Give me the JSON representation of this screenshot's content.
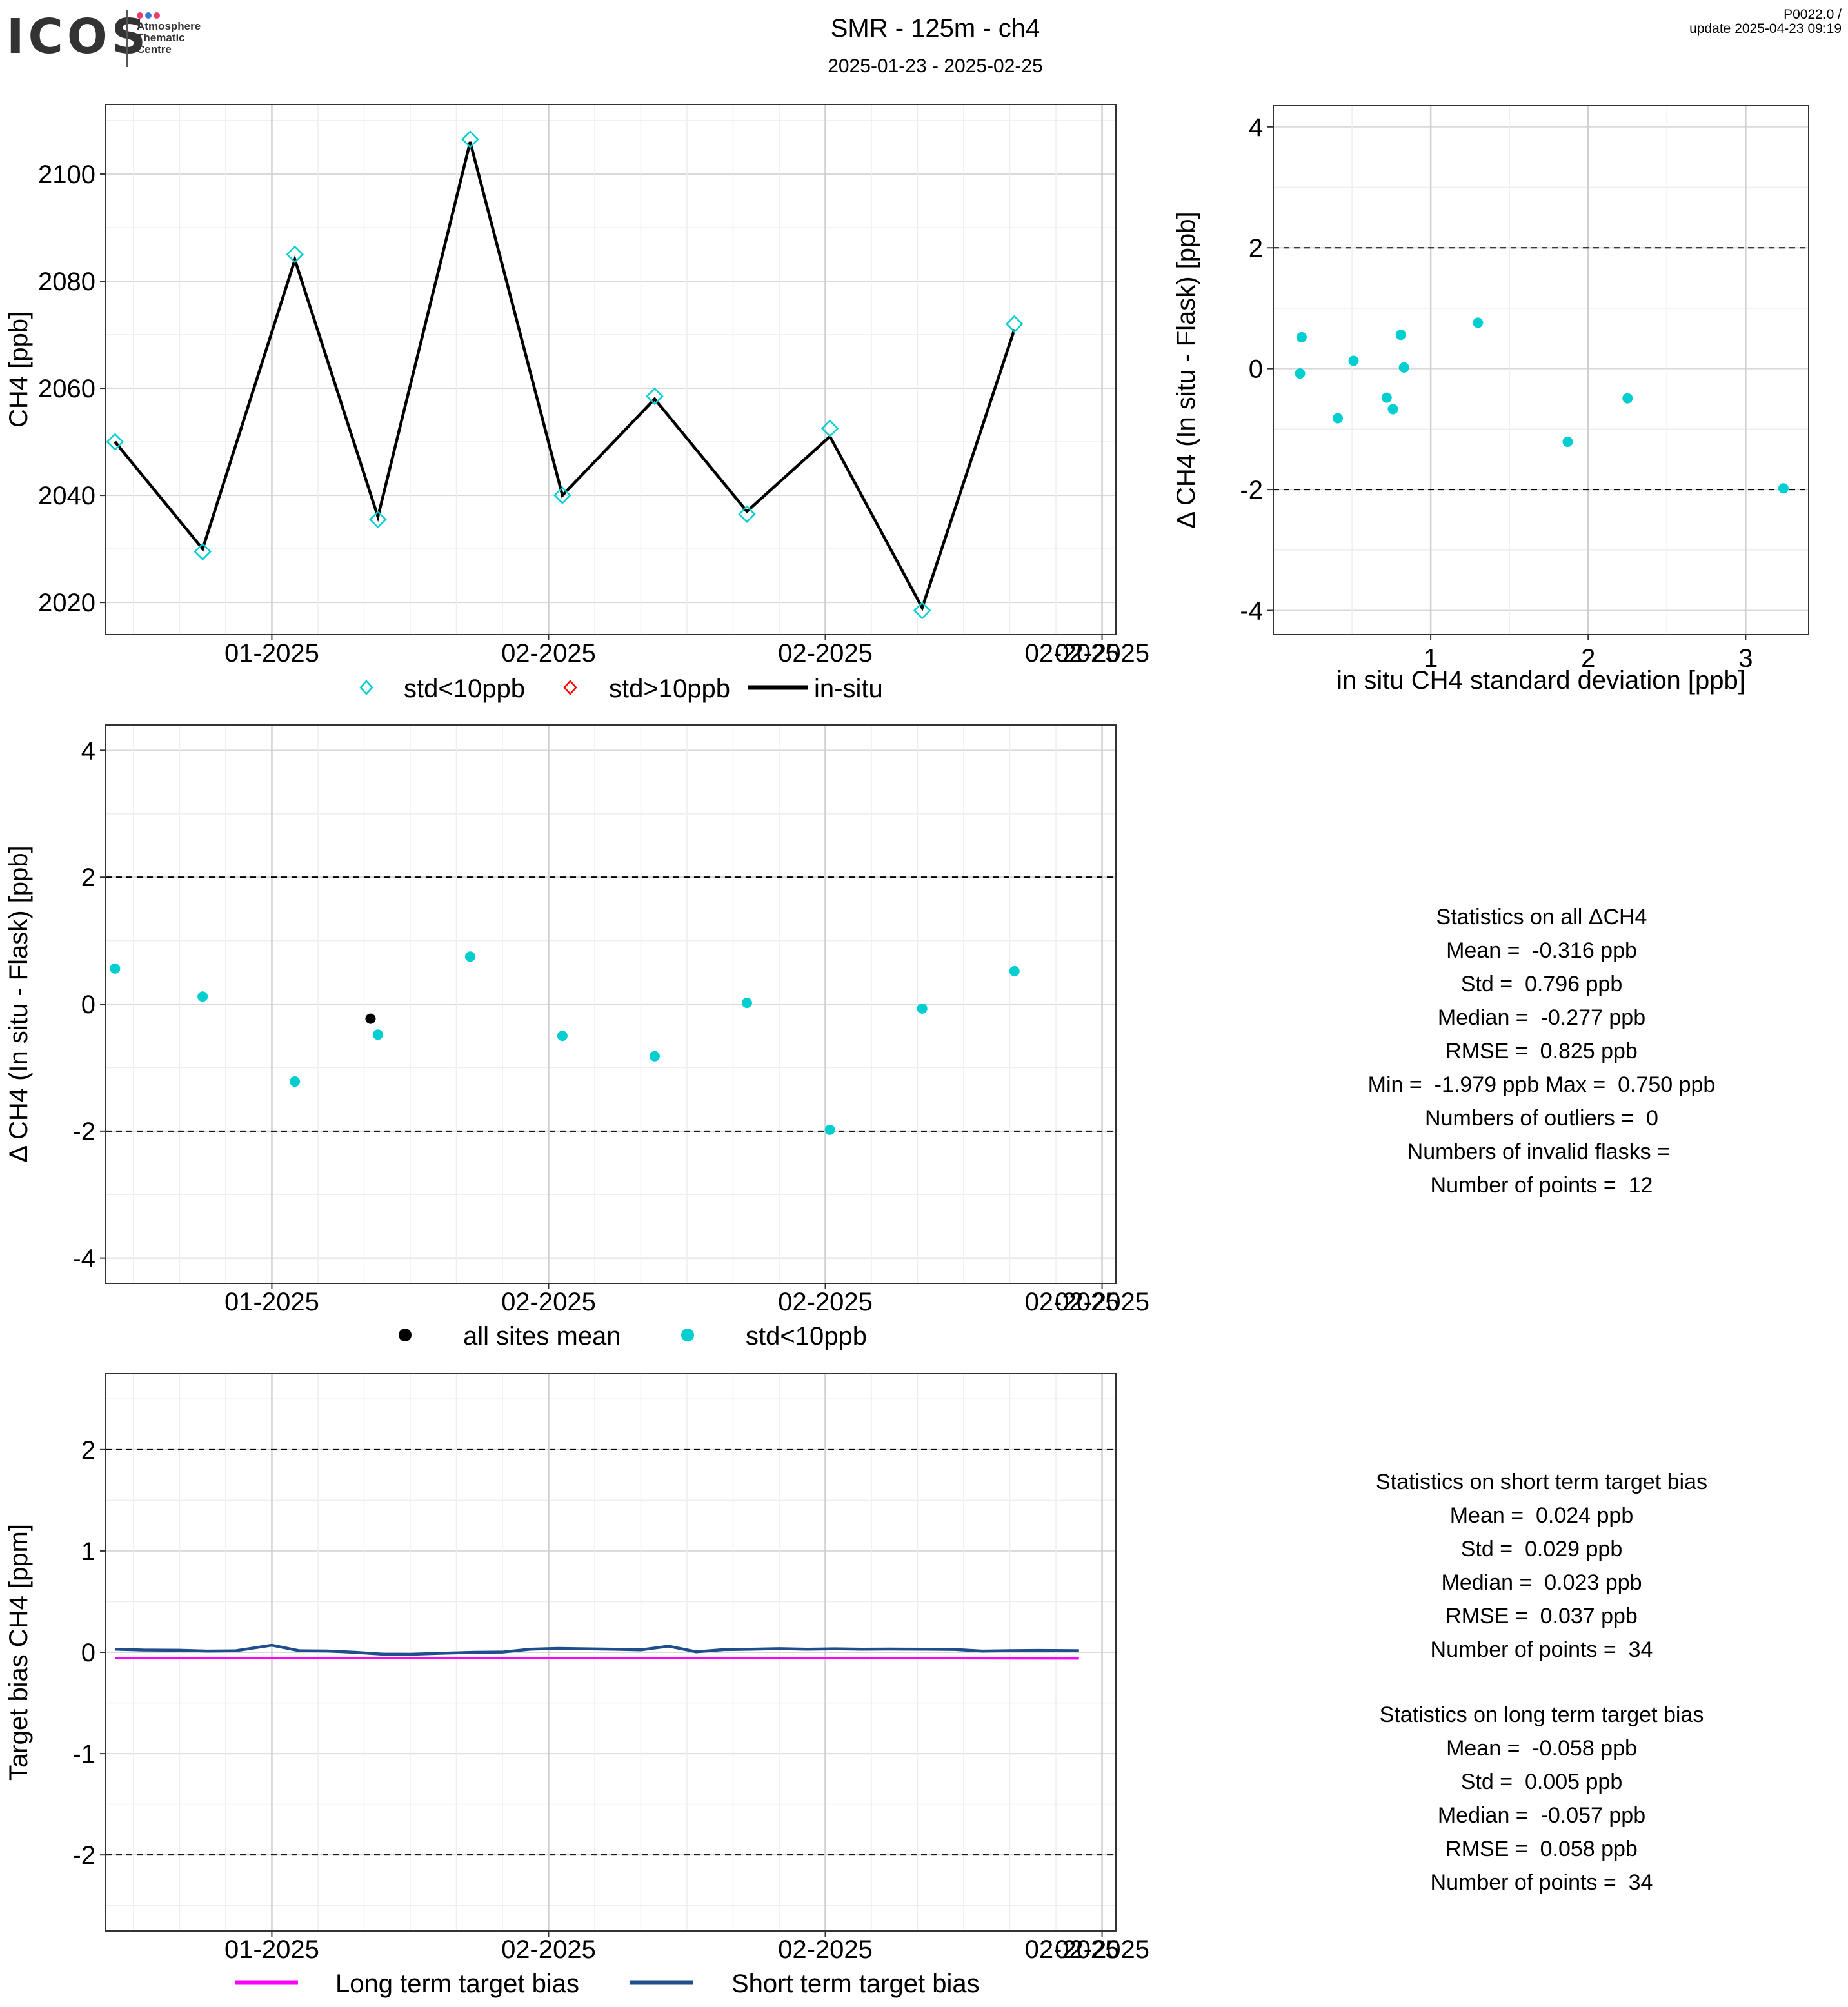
{
  "header": {
    "logo_text": "ICOS",
    "logo_subtitle": [
      "Atmosphere",
      "Thematic",
      "Centre"
    ],
    "title": "SMR - 125m - ch4",
    "date_range": "2025-01-23 - 2025-02-25",
    "version": "P0022.0 /",
    "update": "update  2025-04-23 09:19"
  },
  "colors": {
    "cyan": "#00CED1",
    "black": "#000000",
    "red": "#FF0000",
    "magenta": "#FF00FF",
    "navy": "#1F4E8C",
    "logo_dots": [
      "#E83E6C",
      "#3C78D8",
      "#E83E6C"
    ]
  },
  "chart_data": [
    {
      "type": "line",
      "ylabel": "CH4 [ppb]",
      "xlabel": "",
      "x_tick_labels": [
        "01-2025",
        "02-2025",
        "02-2025",
        "02-2025",
        "02-2025"
      ],
      "xlim": [
        0,
        10.95
      ],
      "ylim": [
        2014,
        2113
      ],
      "y_ticks": [
        2020,
        2040,
        2060,
        2080,
        2100
      ],
      "grid": true,
      "legend_position": "bottom",
      "legend": [
        "std<10ppb",
        "std>10ppb",
        "in-situ"
      ],
      "series": [
        {
          "name": "in-situ",
          "x": [
            0.1,
            1.05,
            2.05,
            2.95,
            3.95,
            4.95,
            5.95,
            6.95,
            7.85,
            8.85,
            9.85
          ],
          "y": [
            2050,
            2030,
            2084,
            2036,
            2106,
            2040,
            2058,
            2037,
            2051,
            2019,
            2071
          ]
        },
        {
          "name": "std<10ppb",
          "x": [
            0.1,
            1.05,
            2.05,
            2.95,
            3.95,
            4.95,
            5.95,
            6.95,
            7.85,
            8.85,
            9.85
          ],
          "y": [
            2050,
            2029.5,
            2085,
            2035.5,
            2106.5,
            2040,
            2058.5,
            2036.5,
            2052.5,
            2018.5,
            2072
          ]
        }
      ]
    },
    {
      "type": "scatter",
      "xlabel": "in situ CH4 standard deviation [ppb]",
      "ylabel": "Δ CH4 (In situ - Flask) [ppb]",
      "xlim": [
        0,
        3.4
      ],
      "ylim": [
        -4.4,
        4.35
      ],
      "x_ticks": [
        1,
        2,
        3
      ],
      "y_ticks": [
        -4,
        -2,
        0,
        2,
        4
      ],
      "dashed_lines": [
        2,
        -2
      ],
      "grid": true,
      "series": [
        {
          "name": "std<10ppb",
          "x": [
            0.18,
            0.17,
            0.51,
            0.41,
            0.72,
            0.76,
            0.81,
            0.83,
            1.3,
            1.87,
            2.25,
            3.24
          ],
          "y": [
            0.52,
            -0.08,
            0.13,
            -0.82,
            -0.48,
            -0.67,
            0.56,
            0.02,
            0.76,
            -1.21,
            -0.49,
            -1.98
          ]
        }
      ]
    },
    {
      "type": "scatter",
      "ylabel": "Δ CH4 (In situ - Flask) [ppb]",
      "xlabel": "",
      "x_tick_labels": [
        "01-2025",
        "02-2025",
        "02-2025",
        "02-2025",
        "02-2025"
      ],
      "xlim": [
        0,
        10.95
      ],
      "ylim": [
        -4.4,
        4.4
      ],
      "y_ticks": [
        -4,
        -2,
        0,
        2,
        4
      ],
      "dashed_lines": [
        2,
        -2
      ],
      "grid": true,
      "legend_position": "bottom",
      "legend": [
        "all sites mean",
        "std<10ppb"
      ],
      "series": [
        {
          "name": "std<10ppb",
          "x": [
            0.1,
            1.05,
            2.05,
            2.95,
            3.95,
            4.95,
            5.95,
            6.95,
            7.85,
            8.85,
            9.85
          ],
          "y": [
            0.56,
            0.12,
            -1.22,
            -0.48,
            0.75,
            -0.5,
            -0.82,
            0.02,
            -1.98,
            -0.07,
            0.52
          ]
        },
        {
          "name": "all sites mean",
          "x": [
            2.87
          ],
          "y": [
            -0.23
          ]
        }
      ]
    },
    {
      "type": "line",
      "ylabel": "Target bias CH4 [ppm]",
      "xlabel": "",
      "x_tick_labels": [
        "01-2025",
        "02-2025",
        "02-2025",
        "02-2025",
        "02-2025"
      ],
      "xlim": [
        0,
        10.95
      ],
      "ylim": [
        -2.75,
        2.75
      ],
      "y_ticks": [
        -2,
        -1,
        0,
        1,
        2
      ],
      "dashed_lines": [
        2,
        -2
      ],
      "grid": true,
      "legend_position": "bottom",
      "legend": [
        "Long term target bias",
        "Short term target bias"
      ],
      "series": [
        {
          "name": "Long term target bias",
          "x": [
            0.1,
            3.0,
            6.0,
            9.0,
            10.55
          ],
          "y": [
            -0.058,
            -0.058,
            -0.057,
            -0.058,
            -0.062
          ]
        },
        {
          "name": "Short term target bias",
          "x": [
            0.1,
            0.4,
            0.8,
            1.1,
            1.4,
            1.8,
            2.1,
            2.4,
            2.7,
            3.0,
            3.3,
            3.6,
            4.0,
            4.3,
            4.6,
            4.9,
            5.2,
            5.5,
            5.8,
            6.1,
            6.4,
            6.7,
            7.0,
            7.3,
            7.6,
            7.9,
            8.2,
            8.5,
            8.9,
            9.2,
            9.5,
            9.8,
            10.1,
            10.55
          ],
          "y": [
            0.03,
            0.022,
            0.02,
            0.012,
            0.014,
            0.07,
            0.015,
            0.013,
            0.0,
            -0.018,
            -0.02,
            -0.01,
            0.0,
            0.002,
            0.03,
            0.038,
            0.034,
            0.03,
            0.024,
            0.06,
            0.005,
            0.026,
            0.03,
            0.036,
            0.03,
            0.034,
            0.03,
            0.032,
            0.03,
            0.028,
            0.012,
            0.016,
            0.018,
            0.016
          ]
        }
      ]
    }
  ],
  "stats_delta": {
    "title": "Statistics on all ΔCH4",
    "mean": "Mean =  -0.316 ppb",
    "std": "Std =  0.796 ppb",
    "median": "Median =  -0.277 ppb",
    "rmse": "RMSE =  0.825 ppb",
    "minmax": "Min =  -1.979 ppb Max =  0.750 ppb",
    "outliers": "Numbers of outliers =  0",
    "invalid": "Numbers of invalid flasks = ",
    "points": "Number of points =  12"
  },
  "stats_short": {
    "title": "Statistics on short term target bias",
    "mean": "Mean =  0.024 ppb",
    "std": "Std =  0.029 ppb",
    "median": "Median =  0.023 ppb",
    "rmse": "RMSE =  0.037 ppb",
    "points": "Number of points =  34"
  },
  "stats_long": {
    "title": "Statistics on long term target bias",
    "mean": "Mean =  -0.058 ppb",
    "std": "Std =  0.005 ppb",
    "median": "Median =  -0.057 ppb",
    "rmse": "RMSE =  0.058 ppb",
    "points": "Number of points =  34"
  }
}
